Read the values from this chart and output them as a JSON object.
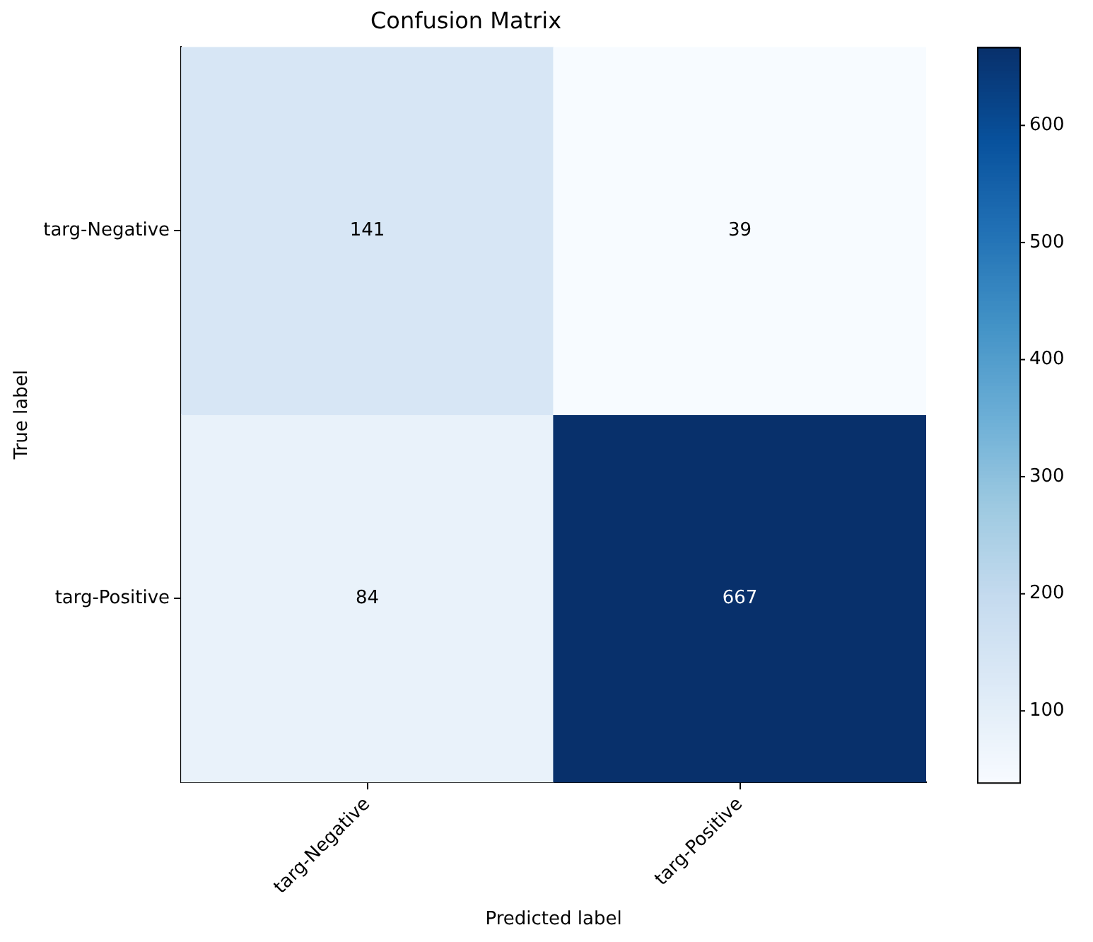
{
  "chart_data": {
    "type": "heatmap",
    "title": "Confusion Matrix",
    "xlabel": "Predicted label",
    "ylabel": "True label",
    "categories": [
      "targ-Negative",
      "targ-Positive"
    ],
    "y_categories": [
      "targ-Negative",
      "targ-Positive"
    ],
    "cells": [
      [
        141,
        39
      ],
      [
        84,
        667
      ]
    ],
    "clim": [
      39,
      667
    ],
    "cticks": [
      100,
      200,
      300,
      400,
      500,
      600
    ],
    "data_labels": true
  }
}
